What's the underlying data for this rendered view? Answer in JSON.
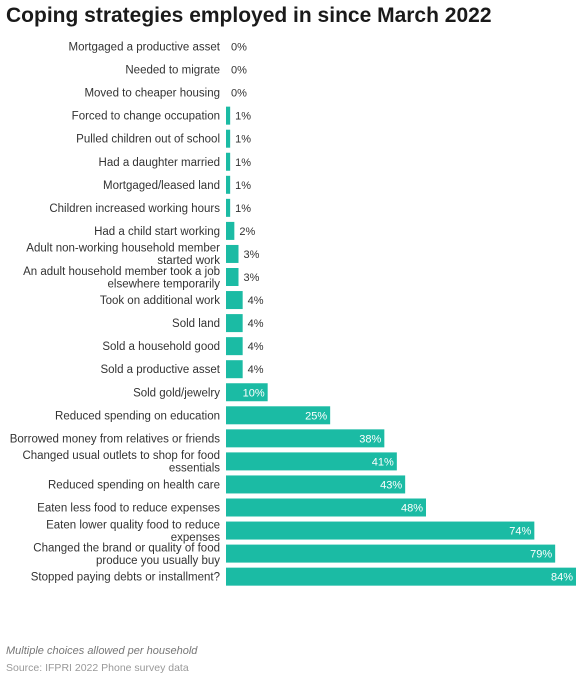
{
  "title": "Coping strategies employed in since March 2022",
  "note": "Multiple choices allowed per household",
  "source": "Source: IFPRI 2022 Phone survey data",
  "colors": {
    "bar": "#1bbba4",
    "label_inside": "#ffffff",
    "label_outside": "#333333"
  },
  "chart_data": {
    "type": "bar",
    "orientation": "horizontal",
    "title": "Coping strategies employed in since March 2022",
    "xlim": [
      0,
      84
    ],
    "grid": false,
    "categories": [
      [
        "Mortgaged a productive asset"
      ],
      [
        "Needed to migrate"
      ],
      [
        "Moved to cheaper housing"
      ],
      [
        "Forced to change occupation"
      ],
      [
        "Pulled children out of school"
      ],
      [
        "Had a daughter married"
      ],
      [
        "Mortgaged/leased land"
      ],
      [
        "Children increased working hours"
      ],
      [
        "Had a child start working"
      ],
      [
        "Adult non-working household member",
        "started work"
      ],
      [
        "An adult household member took a job",
        "elsewhere temporarily"
      ],
      [
        "Took on additional work"
      ],
      [
        "Sold land"
      ],
      [
        "Sold a household good"
      ],
      [
        "Sold a productive asset"
      ],
      [
        "Sold gold/jewelry"
      ],
      [
        "Reduced spending on education"
      ],
      [
        "Borrowed money from relatives or friends"
      ],
      [
        "Changed usual outlets to shop for food",
        "essentials"
      ],
      [
        "Reduced spending on health care"
      ],
      [
        "Eaten less food to reduce expenses"
      ],
      [
        "Eaten lower quality food to reduce",
        "expenses"
      ],
      [
        "Changed the brand or quality of food",
        "produce you usually buy"
      ],
      [
        "Stopped paying debts or installment?"
      ]
    ],
    "values": [
      0,
      0,
      0,
      1,
      1,
      1,
      1,
      1,
      2,
      3,
      3,
      4,
      4,
      4,
      4,
      10,
      25,
      38,
      41,
      43,
      48,
      74,
      79,
      84
    ],
    "value_labels": [
      "0%",
      "0%",
      "0%",
      "1%",
      "1%",
      "1%",
      "1%",
      "1%",
      "2%",
      "3%",
      "3%",
      "4%",
      "4%",
      "4%",
      "4%",
      "10%",
      "25%",
      "38%",
      "41%",
      "43%",
      "48%",
      "74%",
      "79%",
      "84%"
    ],
    "unit": "%"
  }
}
